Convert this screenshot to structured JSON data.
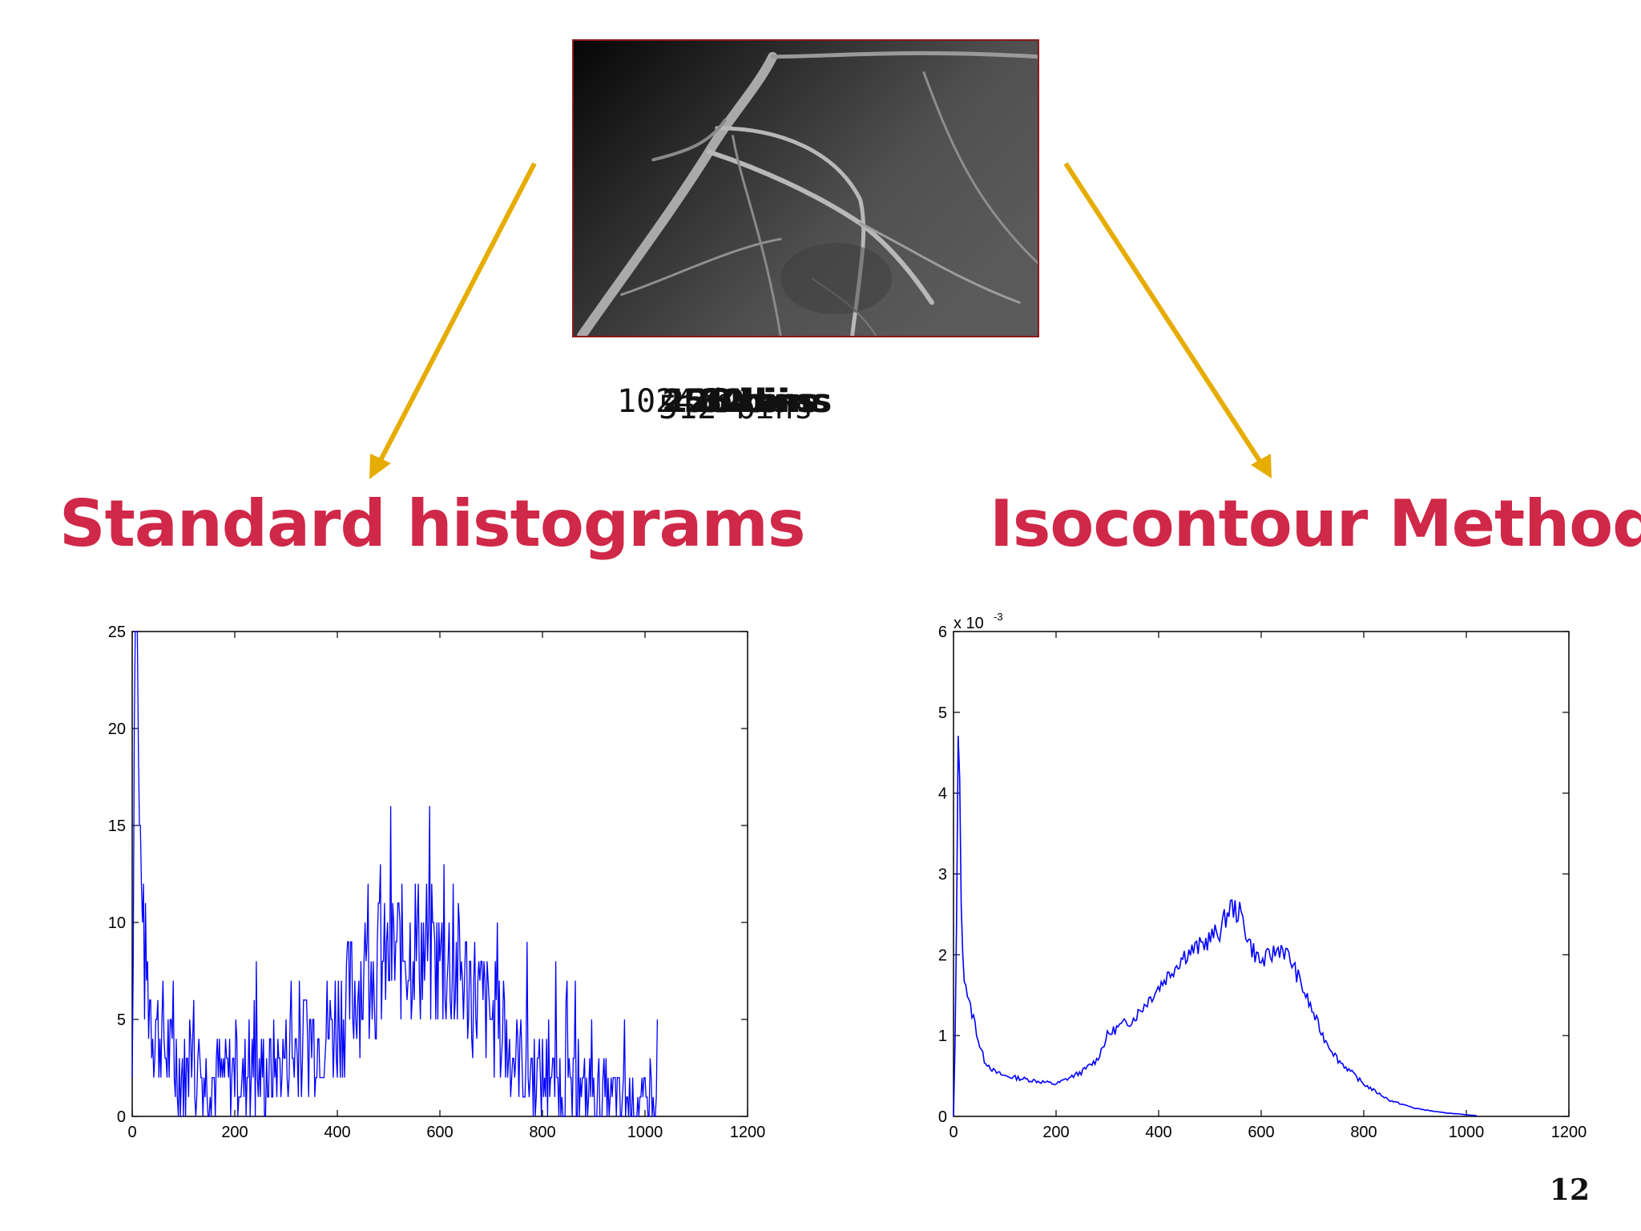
{
  "bins_labels": [
    "1024 bins",
    "512 bins",
    "256 bins",
    "128 bins",
    "64 bins",
    "32 bins"
  ],
  "left_heading": "Standard histograms",
  "right_heading": "Isocontour Method",
  "page_number": "12",
  "colors": {
    "heading": "#d02848",
    "arrow": "#e6ac00",
    "series": "#0000ff"
  },
  "chart_data": [
    {
      "type": "line",
      "title": "",
      "xlabel": "",
      "ylabel": "",
      "xlim": [
        0,
        1200
      ],
      "ylim": [
        0,
        25
      ],
      "xticks": [
        "0",
        "200",
        "400",
        "600",
        "800",
        "1000",
        "1200"
      ],
      "yticks": [
        "0",
        "5",
        "10",
        "15",
        "20",
        "25"
      ],
      "grid": false,
      "style": "noisy histogram counts",
      "series": [
        {
          "x": [
            0,
            5,
            10,
            15,
            20,
            30,
            40,
            60,
            80,
            100,
            150,
            200,
            250,
            300,
            350,
            400,
            450,
            500,
            550,
            600,
            650,
            700,
            750,
            800,
            850,
            900,
            950,
            1000,
            1024
          ],
          "y": [
            2,
            25,
            20,
            14,
            9,
            7,
            5,
            4,
            3,
            2,
            2,
            2,
            2,
            3,
            4,
            5,
            7,
            8,
            9,
            8,
            7,
            5,
            3,
            2,
            1.5,
            1,
            0.8,
            0.5,
            0.5
          ]
        }
      ]
    },
    {
      "type": "line",
      "title": "",
      "xlabel": "",
      "ylabel": "",
      "scale_label": "x 10",
      "scale_exponent": "-3",
      "xlim": [
        0,
        1200
      ],
      "ylim": [
        0,
        6
      ],
      "xticks": [
        "0",
        "200",
        "400",
        "600",
        "800",
        "1000",
        "1200"
      ],
      "yticks": [
        "0",
        "1",
        "2",
        "3",
        "4",
        "5",
        "6"
      ],
      "grid": false,
      "series": [
        {
          "x": [
            0,
            5,
            10,
            15,
            20,
            25,
            30,
            40,
            50,
            60,
            80,
            100,
            150,
            200,
            250,
            280,
            300,
            320,
            350,
            400,
            450,
            480,
            500,
            520,
            540,
            560,
            580,
            600,
            620,
            640,
            660,
            680,
            700,
            720,
            750,
            800,
            850,
            900,
            950,
            1000,
            1020
          ],
          "y": [
            0.0,
            1.5,
            5.5,
            2.5,
            1.8,
            1.6,
            1.4,
            1.2,
            0.9,
            0.7,
            0.55,
            0.5,
            0.45,
            0.4,
            0.55,
            0.7,
            1.0,
            1.1,
            1.2,
            1.6,
            2.0,
            2.1,
            2.2,
            2.3,
            2.6,
            2.5,
            2.1,
            1.9,
            2.0,
            2.1,
            1.9,
            1.6,
            1.3,
            1.0,
            0.7,
            0.4,
            0.2,
            0.1,
            0.05,
            0.02,
            0.01
          ]
        }
      ]
    }
  ]
}
